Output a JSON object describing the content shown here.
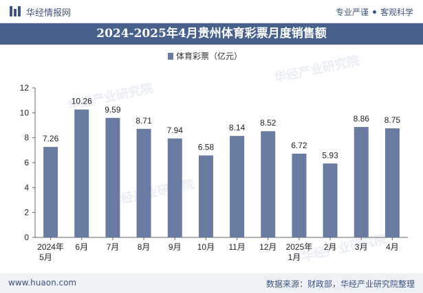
{
  "header": {
    "brand": "华经情报网",
    "tagline_left": "专业严谨",
    "tagline_right": "客观科学"
  },
  "footer": {
    "site": "www.huaon.com",
    "source": "数据来源：财政部，华经产业研究院整理"
  },
  "watermark": "华经产业研究院",
  "chart_data": {
    "type": "bar",
    "title": "2024-2025年4月贵州体育彩票月度销售额",
    "categories": [
      "2024年5月",
      "6月",
      "7月",
      "8月",
      "9月",
      "10月",
      "11月",
      "12月",
      "2025年1月",
      "2月",
      "3月",
      "4月"
    ],
    "series": [
      {
        "name": "体育彩票（亿元）",
        "values": [
          7.26,
          10.26,
          9.59,
          8.71,
          7.94,
          6.58,
          8.14,
          8.52,
          6.72,
          5.93,
          8.86,
          8.75
        ]
      }
    ],
    "value_labels": [
      "7.26",
      "10.26",
      "9.59",
      "8.71",
      "7.94",
      "6.58",
      "8.14",
      "8.52",
      "6.72",
      "5.93",
      "8.86",
      "8.75"
    ],
    "ylim": [
      0,
      12
    ],
    "yticks": [
      0,
      2,
      4,
      6,
      8,
      10,
      12
    ],
    "xlabel": "",
    "ylabel": "",
    "legend_position": "top-center",
    "grid": false,
    "bar_color": "#6a7ba2"
  }
}
